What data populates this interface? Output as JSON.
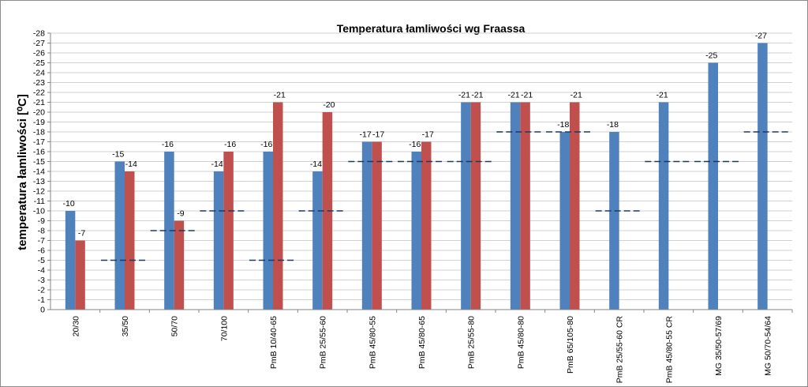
{
  "chart_data": {
    "type": "bar",
    "title": "Temperatura łamliwości wg Fraassa",
    "xlabel": "",
    "ylabel": "temperatura łamliwości [⁰C]",
    "ylim": [
      0,
      -28
    ],
    "yticks": [
      "0",
      "-1",
      "-2",
      "-3",
      "-4",
      "-5",
      "-6",
      "-7",
      "-8",
      "-9",
      "-10",
      "-11",
      "-12",
      "-13",
      "-14",
      "-15",
      "-16",
      "-17",
      "-18",
      "-19",
      "-20",
      "-21",
      "-22",
      "-23",
      "-24",
      "-25",
      "-26",
      "-27",
      "-28"
    ],
    "grid": true,
    "legend": "none",
    "categories": [
      "20/30",
      "35/50",
      "50/70",
      "70/100",
      "PmB 10/40-65",
      "PmB 25/55-60",
      "PmB 45/80-55",
      "PmB 45/80-65",
      "PmB 25/55-80",
      "PmB 45/80-80",
      "PmB 65/105-80",
      "PmB 25/55-60 CR",
      "PmB 45/80-55 CR",
      "MG 35/50-57/69",
      "MG 50/70-54/64"
    ],
    "series": [
      {
        "color": "#4f81bd",
        "values": [
          -10,
          -15,
          -16,
          -14,
          -16,
          -14,
          -17,
          -16,
          -21,
          -21,
          -18,
          -18,
          -21,
          -25,
          -27
        ],
        "labels": [
          "-10",
          "-15",
          "-16",
          "-14",
          "-16",
          "-14",
          "-17",
          "-16",
          "-21",
          "-21",
          "-18",
          "-18",
          "-21",
          "-25",
          "-27"
        ]
      },
      {
        "color": "#c0504d",
        "values": [
          -7,
          -14,
          -9,
          -16,
          -21,
          -20,
          -17,
          -17,
          -21,
          -21,
          -21,
          null,
          null,
          null,
          null
        ],
        "labels": [
          "-7",
          "-14",
          "-9",
          "-16",
          "-21",
          "-20",
          "-17",
          "-17",
          "-21",
          "-21",
          "-21",
          "",
          "",
          "",
          ""
        ]
      }
    ],
    "reference_levels": {
      "color": "#1f3864",
      "values": [
        null,
        -5,
        -8,
        -10,
        -5,
        -10,
        -15,
        -15,
        -15,
        -18,
        -18,
        -10,
        -15,
        -15,
        -18
      ]
    }
  }
}
